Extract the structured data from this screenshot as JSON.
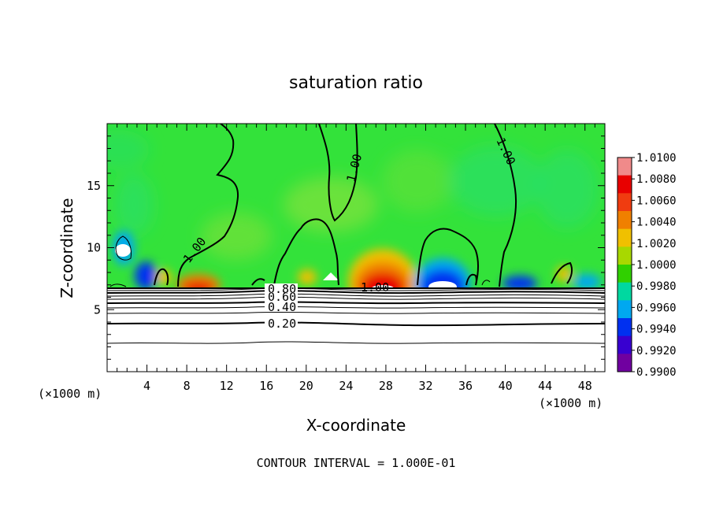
{
  "chart_data": {
    "type": "heatmap",
    "title": "saturation ratio",
    "xlabel": "X-coordinate",
    "ylabel": "Z-coordinate",
    "x_unit_left": "(×1000 m)",
    "x_unit_right": "(×1000 m)",
    "xlim": [
      0,
      50
    ],
    "ylim": [
      0,
      20
    ],
    "x_ticks": [
      "4",
      "8",
      "12",
      "16",
      "20",
      "24",
      "28",
      "32",
      "36",
      "40",
      "44",
      "48"
    ],
    "x_tick_values": [
      4,
      8,
      12,
      16,
      20,
      24,
      28,
      32,
      36,
      40,
      44,
      48
    ],
    "y_ticks": [
      "5",
      "10",
      "15"
    ],
    "y_tick_values": [
      5,
      10,
      15
    ],
    "footer": "CONTOUR INTERVAL = 1.000E-01",
    "contour_labels": [
      {
        "text": "1.00",
        "x": 9.0,
        "z": 9.5
      },
      {
        "text": "1.00",
        "x": 25.0,
        "z": 16.5
      },
      {
        "text": "1.00",
        "x": 39.5,
        "z": 17.5
      },
      {
        "text": "1.00",
        "x": 27.0,
        "z": 6.8
      },
      {
        "text": "0.80",
        "x": 17.7,
        "z": 6.7
      },
      {
        "text": "0.60",
        "x": 17.7,
        "z": 5.8
      },
      {
        "text": "0.40",
        "x": 17.7,
        "z": 5.0
      },
      {
        "text": "0.20",
        "x": 17.7,
        "z": 3.8
      }
    ],
    "colorbar": {
      "labels": [
        "1.0100",
        "1.0080",
        "1.0060",
        "1.0040",
        "1.0020",
        "1.0000",
        "0.9980",
        "0.9960",
        "0.9940",
        "0.9920",
        "0.9900"
      ],
      "colors": [
        "#f08a8a",
        "#e80000",
        "#f03c10",
        "#f08000",
        "#f0c000",
        "#a8d800",
        "#30d000",
        "#00d8a0",
        "#00a8f0",
        "#0030f0",
        "#3800d0",
        "#7000a0"
      ]
    },
    "background_color": "#33e23a"
  }
}
